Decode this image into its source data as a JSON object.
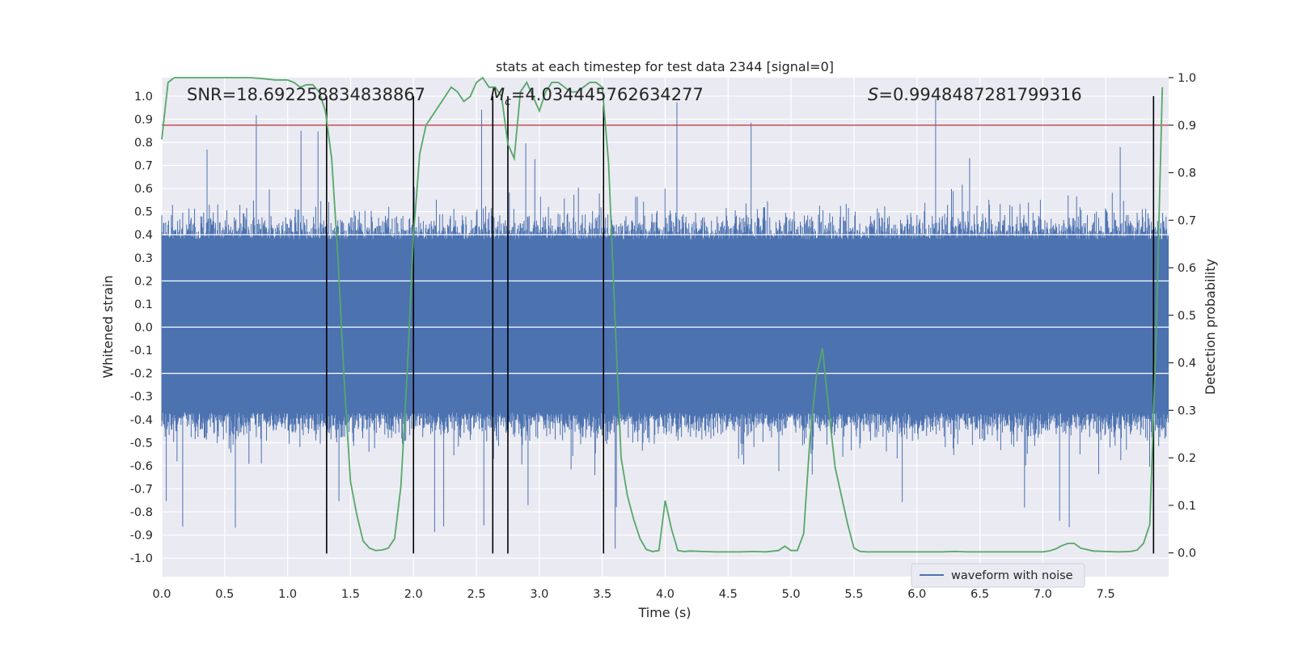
{
  "chart_data": {
    "type": "line",
    "title": "stats at each timestep for test data 2344 [signal=0]",
    "xlabel": "Time (s)",
    "ylabel": "Whitened strain",
    "ylabel_right": "Detection probability",
    "xlim": [
      0.0,
      8.0
    ],
    "ylim": [
      -1.08,
      1.08
    ],
    "ylim_right": [
      -0.05,
      1.0
    ],
    "x_ticks": [
      "0.0",
      "0.5",
      "1.0",
      "1.5",
      "2.0",
      "2.5",
      "3.0",
      "3.5",
      "4.0",
      "4.5",
      "5.0",
      "5.5",
      "6.0",
      "6.5",
      "7.0",
      "7.5"
    ],
    "y_ticks": [
      "1.0",
      "0.9",
      "0.8",
      "0.7",
      "0.6",
      "0.5",
      "0.4",
      "0.3",
      "0.2",
      "0.1",
      "0.0",
      "-0.1",
      "-0.2",
      "-0.3",
      "-0.4",
      "-0.5",
      "-0.6",
      "-0.7",
      "-0.8",
      "-0.9",
      "-1.0"
    ],
    "y_ticks_right": [
      "1.0",
      "0.9",
      "0.8",
      "0.7",
      "0.6",
      "0.5",
      "0.4",
      "0.3",
      "0.2",
      "0.1",
      "0.0"
    ],
    "grid": true,
    "legend": {
      "location": "lower-right",
      "entries": [
        {
          "label": "waveform with noise",
          "color": "#4c72b0"
        }
      ]
    },
    "annotations": {
      "snr": "SNR=18.692258834838867",
      "mc_symbol": "M",
      "mc_sub": "c",
      "mc_value": "=4.034445762634277",
      "s_symbol": "S",
      "s_value": "=0.9948487281799316"
    },
    "threshold": {
      "axis": "right",
      "value": 0.9,
      "color": "#c44e52"
    },
    "vertical_lines": [
      1.31,
      2.0,
      2.63,
      2.75,
      3.51,
      7.88
    ],
    "series": [
      {
        "name": "waveform with noise",
        "axis": "left",
        "color": "#4c72b0",
        "style": "dense-noise",
        "envelope": {
          "core_min": -0.37,
          "core_max": 0.38,
          "typical_peak": 0.6,
          "max_peak": 1.0,
          "min_peak": -0.97
        }
      },
      {
        "axis": "right",
        "color": "#55a868",
        "x": [
          0.0,
          0.05,
          0.1,
          0.2,
          0.3,
          0.4,
          0.5,
          0.6,
          0.7,
          0.8,
          0.9,
          1.0,
          1.05,
          1.1,
          1.15,
          1.2,
          1.25,
          1.3,
          1.35,
          1.4,
          1.45,
          1.5,
          1.55,
          1.6,
          1.65,
          1.7,
          1.75,
          1.8,
          1.85,
          1.9,
          1.95,
          2.0,
          2.05,
          2.1,
          2.15,
          2.2,
          2.25,
          2.3,
          2.35,
          2.4,
          2.45,
          2.5,
          2.55,
          2.6,
          2.65,
          2.7,
          2.75,
          2.8,
          2.85,
          2.9,
          2.95,
          3.0,
          3.05,
          3.1,
          3.15,
          3.2,
          3.25,
          3.3,
          3.35,
          3.4,
          3.45,
          3.5,
          3.55,
          3.6,
          3.65,
          3.7,
          3.75,
          3.8,
          3.85,
          3.9,
          3.95,
          4.0,
          4.05,
          4.1,
          4.15,
          4.2,
          4.3,
          4.4,
          4.5,
          4.6,
          4.7,
          4.8,
          4.9,
          4.95,
          5.0,
          5.05,
          5.1,
          5.15,
          5.2,
          5.25,
          5.3,
          5.35,
          5.4,
          5.45,
          5.5,
          5.55,
          5.6,
          5.7,
          5.8,
          5.9,
          6.0,
          6.1,
          6.2,
          6.3,
          6.4,
          6.5,
          6.6,
          6.7,
          6.8,
          6.9,
          7.0,
          7.05,
          7.1,
          7.15,
          7.2,
          7.25,
          7.3,
          7.4,
          7.5,
          7.6,
          7.7,
          7.75,
          7.8,
          7.85,
          7.9,
          7.95
        ],
        "y": [
          0.87,
          0.99,
          1.0,
          1.0,
          1.0,
          1.0,
          1.0,
          1.0,
          1.0,
          0.998,
          0.995,
          0.995,
          0.99,
          0.98,
          0.985,
          0.985,
          0.97,
          0.93,
          0.83,
          0.62,
          0.36,
          0.15,
          0.08,
          0.025,
          0.01,
          0.005,
          0.006,
          0.01,
          0.03,
          0.14,
          0.38,
          0.67,
          0.84,
          0.9,
          0.92,
          0.94,
          0.96,
          0.98,
          0.97,
          0.95,
          0.96,
          0.99,
          1.0,
          0.98,
          0.98,
          0.96,
          0.86,
          0.83,
          0.97,
          0.99,
          0.96,
          0.93,
          0.97,
          0.99,
          0.99,
          0.98,
          0.97,
          0.97,
          0.98,
          0.99,
          0.99,
          0.98,
          0.82,
          0.5,
          0.2,
          0.12,
          0.07,
          0.03,
          0.007,
          0.003,
          0.005,
          0.11,
          0.05,
          0.005,
          0.003,
          0.004,
          0.003,
          0.002,
          0.002,
          0.002,
          0.003,
          0.002,
          0.005,
          0.014,
          0.005,
          0.005,
          0.04,
          0.24,
          0.37,
          0.43,
          0.3,
          0.18,
          0.12,
          0.06,
          0.01,
          0.003,
          0.002,
          0.002,
          0.002,
          0.002,
          0.002,
          0.002,
          0.002,
          0.003,
          0.002,
          0.002,
          0.002,
          0.002,
          0.002,
          0.002,
          0.002,
          0.004,
          0.008,
          0.015,
          0.02,
          0.02,
          0.01,
          0.004,
          0.003,
          0.002,
          0.003,
          0.006,
          0.02,
          0.06,
          0.45,
          0.98
        ]
      }
    ]
  }
}
